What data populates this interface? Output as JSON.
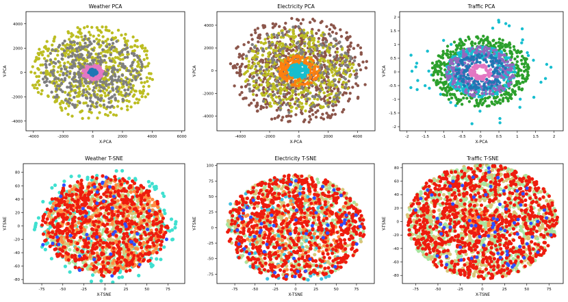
{
  "chart_data": [
    {
      "type": "scatter",
      "title": "Weather PCA",
      "xlabel": "X-PCA",
      "ylabel": "Y-PCA",
      "xlim": [
        -4500,
        6200
      ],
      "ylim": [
        -4800,
        5000
      ],
      "xticks": [
        -4000,
        -2000,
        0,
        2000,
        4000,
        6000
      ],
      "yticks": [
        -4000,
        -2000,
        0,
        2000,
        4000
      ],
      "series": [
        {
          "name": "cluster-olive-wide",
          "color": "#bcbd22",
          "center": [
            0,
            0
          ],
          "radius": [
            400,
            4200
          ],
          "count": 620
        },
        {
          "name": "cluster-grey",
          "color": "#7f7f7f",
          "center": [
            0,
            0
          ],
          "radius": [
            400,
            3400
          ],
          "count": 380
        },
        {
          "name": "cluster-pink",
          "color": "#e377c2",
          "center": [
            0,
            0
          ],
          "radius": [
            200,
            700
          ],
          "count": 120
        },
        {
          "name": "cluster-blue",
          "color": "#1f77b4",
          "center": [
            0,
            0
          ],
          "radius": [
            0,
            300
          ],
          "count": 80
        }
      ]
    },
    {
      "type": "scatter",
      "title": "Electricity PCA",
      "xlabel": "X-PCA",
      "ylabel": "Y-PCA",
      "xlim": [
        -5600,
        5200
      ],
      "ylim": [
        -5300,
        5200
      ],
      "xticks": [
        -4000,
        -2000,
        0,
        2000,
        4000
      ],
      "yticks": [
        -4000,
        -2000,
        0,
        2000,
        4000
      ],
      "series": [
        {
          "name": "cluster-brown",
          "color": "#8c564b",
          "center": [
            0,
            0
          ],
          "radius": [
            800,
            4800
          ],
          "count": 650
        },
        {
          "name": "cluster-olive",
          "color": "#bcbd22",
          "center": [
            0,
            0
          ],
          "radius": [
            600,
            3800
          ],
          "count": 480
        },
        {
          "name": "cluster-grey",
          "color": "#7f7f7f",
          "center": [
            0,
            0
          ],
          "radius": [
            800,
            4000
          ],
          "count": 200
        },
        {
          "name": "cluster-orange",
          "color": "#ff7f0e",
          "center": [
            0,
            0
          ],
          "radius": [
            500,
            1400
          ],
          "count": 160
        },
        {
          "name": "cluster-cyan",
          "color": "#17becf",
          "center": [
            0,
            0
          ],
          "radius": [
            0,
            700
          ],
          "count": 140
        }
      ]
    },
    {
      "type": "scatter",
      "title": "Traffic PCA",
      "xlabel": "X-PCA",
      "ylabel": "Y-PCA",
      "xlim": [
        -2.2,
        2.25
      ],
      "ylim": [
        -2.15,
        2.2
      ],
      "xticks": [
        -2.0,
        -1.5,
        -1.0,
        -0.5,
        0.0,
        0.5,
        1.0,
        1.5,
        2.0
      ],
      "yticks": [
        -2.0,
        -1.5,
        -1.0,
        -0.5,
        0.0,
        0.5,
        1.0,
        1.5,
        2.0
      ],
      "series": [
        {
          "name": "cluster-cyan-outliers",
          "color": "#17becf",
          "center": [
            0,
            0
          ],
          "radius": [
            1.3,
            2.0
          ],
          "count": 40
        },
        {
          "name": "cluster-green",
          "color": "#2ca02c",
          "center": [
            0,
            0
          ],
          "radius": [
            0.8,
            1.35
          ],
          "count": 420
        },
        {
          "name": "cluster-cyan",
          "color": "#17becf",
          "center": [
            0,
            0
          ],
          "radius": [
            0.5,
            0.95
          ],
          "count": 380
        },
        {
          "name": "cluster-purple",
          "color": "#9467bd",
          "center": [
            0,
            0
          ],
          "radius": [
            0.4,
            0.95
          ],
          "count": 260
        },
        {
          "name": "cluster-blue",
          "color": "#1f77b4",
          "center": [
            0,
            0
          ],
          "radius": [
            0.3,
            0.7
          ],
          "count": 140
        },
        {
          "name": "cluster-pink",
          "color": "#e377c2",
          "center": [
            0,
            0
          ],
          "radius": [
            0.15,
            0.3
          ],
          "count": 90
        }
      ]
    },
    {
      "type": "scatter",
      "title": "Weather T-SNE",
      "xlabel": "X-TSNE",
      "ylabel": "Y-TSNE",
      "xlim": [
        -97,
        95
      ],
      "ylim": [
        -86,
        93
      ],
      "xticks": [
        -75,
        -50,
        -25,
        0,
        25,
        50,
        75
      ],
      "yticks": [
        -80,
        -60,
        -40,
        -20,
        0,
        20,
        40,
        60,
        80
      ],
      "series": [
        {
          "name": "cluster-cyan",
          "color": "#40e0d0",
          "center": [
            0,
            0
          ],
          "radius": [
            10,
            85
          ],
          "count": 260
        },
        {
          "name": "cluster-lightgreen",
          "color": "#a8e6a1",
          "center": [
            0,
            0
          ],
          "radius": [
            0,
            70
          ],
          "count": 340
        },
        {
          "name": "cluster-tan",
          "color": "#d8c77a",
          "center": [
            0,
            0
          ],
          "radius": [
            0,
            70
          ],
          "count": 320
        },
        {
          "name": "cluster-orange",
          "color": "#ff8c42",
          "center": [
            0,
            0
          ],
          "radius": [
            0,
            70
          ],
          "count": 420
        },
        {
          "name": "cluster-red",
          "color": "#ee1c0e",
          "center": [
            0,
            0
          ],
          "radius": [
            0,
            75
          ],
          "count": 620
        },
        {
          "name": "cluster-blue",
          "color": "#2f4fff",
          "center": [
            0,
            0
          ],
          "radius": [
            0,
            80
          ],
          "count": 40
        }
      ]
    },
    {
      "type": "scatter",
      "title": "Electricity T-SNE",
      "xlabel": "X-TSNE",
      "ylabel": "Y-TSNE",
      "xlim": [
        -97,
        97
      ],
      "ylim": [
        -90,
        103
      ],
      "xticks": [
        -75,
        -50,
        -25,
        0,
        25,
        50,
        75
      ],
      "yticks": [
        -75,
        -50,
        -25,
        0,
        25,
        50,
        75,
        100
      ],
      "series": [
        {
          "name": "cluster-lightgreen",
          "color": "#a8e6a1",
          "center": [
            0,
            0
          ],
          "radius": [
            0,
            85
          ],
          "count": 360
        },
        {
          "name": "cluster-tan",
          "color": "#d8c77a",
          "center": [
            0,
            0
          ],
          "radius": [
            0,
            85
          ],
          "count": 320
        },
        {
          "name": "cluster-cyan",
          "color": "#40c0e0",
          "center": [
            0,
            0
          ],
          "radius": [
            0,
            90
          ],
          "count": 110
        },
        {
          "name": "cluster-orange",
          "color": "#ff8c42",
          "center": [
            0,
            0
          ],
          "radius": [
            0,
            70
          ],
          "count": 160
        },
        {
          "name": "cluster-red",
          "color": "#ee1c0e",
          "center": [
            0,
            0
          ],
          "radius": [
            0,
            85
          ],
          "count": 720
        },
        {
          "name": "cluster-blue",
          "color": "#2f4fff",
          "center": [
            0,
            0
          ],
          "radius": [
            0,
            80
          ],
          "count": 50
        }
      ]
    },
    {
      "type": "scatter",
      "title": "Traffic T-SNE",
      "xlabel": "X-TSNE",
      "ylabel": "Y-TSNE",
      "xlim": [
        -90,
        91
      ],
      "ylim": [
        -92,
        86
      ],
      "xticks": [
        -75,
        -50,
        -25,
        0,
        25,
        50,
        75
      ],
      "yticks": [
        -80,
        -60,
        -40,
        -20,
        0,
        20,
        40,
        60,
        80
      ],
      "series": [
        {
          "name": "cluster-tan",
          "color": "#d8c77a",
          "center": [
            0,
            0
          ],
          "radius": [
            0,
            85
          ],
          "count": 700
        },
        {
          "name": "cluster-lightgreen",
          "color": "#a8e6a1",
          "center": [
            0,
            0
          ],
          "radius": [
            0,
            85
          ],
          "count": 420
        },
        {
          "name": "cluster-orange",
          "color": "#ff8c42",
          "center": [
            0,
            0
          ],
          "radius": [
            0,
            20
          ],
          "count": 40
        },
        {
          "name": "cluster-red",
          "color": "#ee1c0e",
          "center": [
            0,
            0
          ],
          "radius": [
            0,
            85
          ],
          "count": 900
        },
        {
          "name": "cluster-blue",
          "color": "#2f4fff",
          "center": [
            0,
            0
          ],
          "radius": [
            0,
            80
          ],
          "count": 70
        }
      ]
    }
  ]
}
